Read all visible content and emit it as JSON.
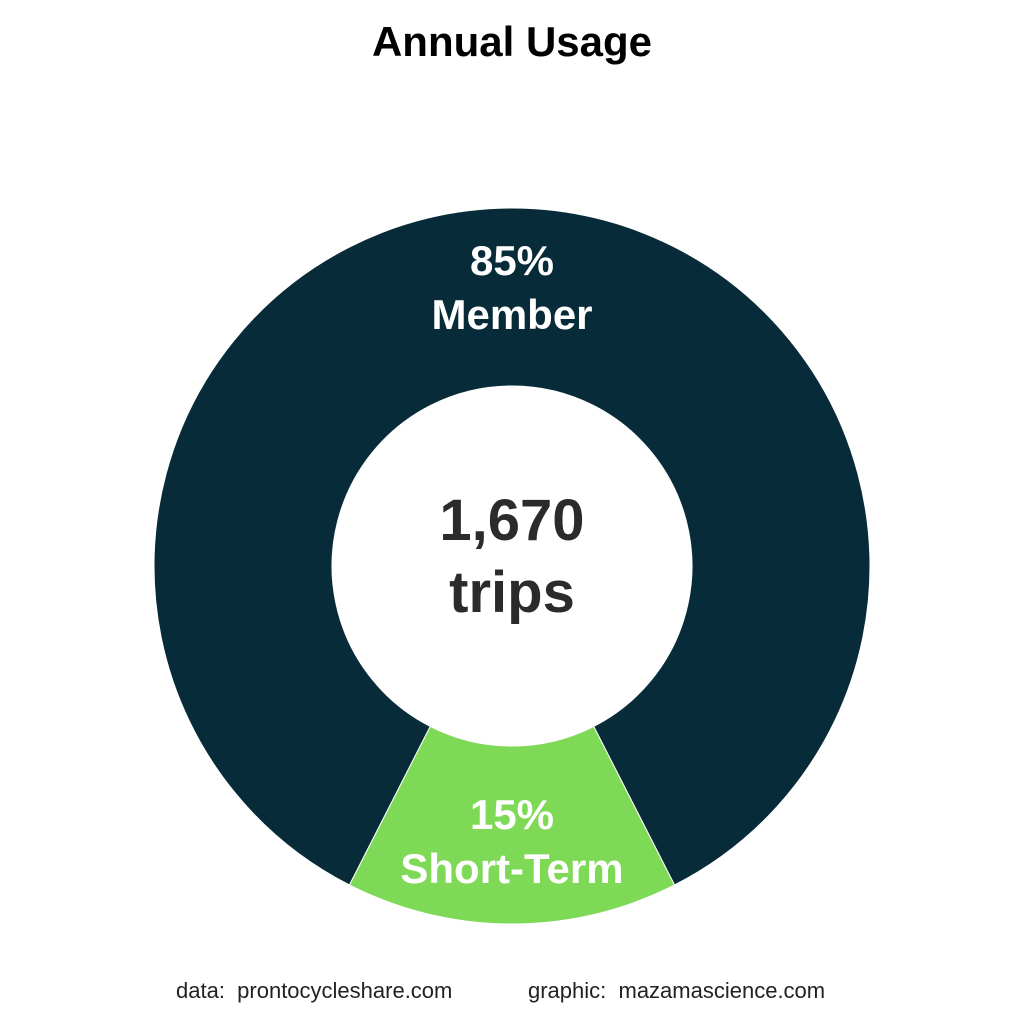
{
  "chart_data": {
    "type": "pie",
    "title": "Annual Usage",
    "total_label": "1,670",
    "total_unit": "trips",
    "slices": [
      {
        "name": "Member",
        "value": 85,
        "label": "85%",
        "color": "#072b38"
      },
      {
        "name": "Short-Term",
        "value": 15,
        "label": "15%",
        "color": "#7ed957"
      }
    ]
  },
  "footer": {
    "data_credit": "data:  prontocycleshare.com",
    "graphic_credit": "graphic:  mazamascience.com"
  }
}
